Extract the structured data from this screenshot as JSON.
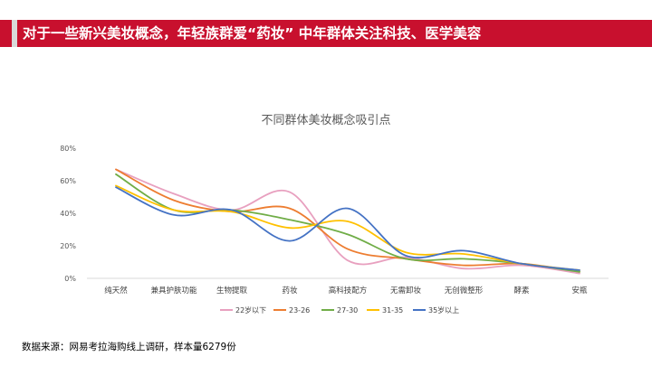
{
  "header": {
    "title": "对于一些新兴美妆概念，年轻族群爱“药妆” 中年群体关注科技、医学美容"
  },
  "footer": {
    "source": "数据来源：网易考拉海购线上调研，样本量6279份"
  },
  "colors": {
    "accent": "#c8102e",
    "header_bg": "#d9d9d9"
  },
  "chart_data": {
    "type": "line",
    "title": "不同群体美妆概念吸引点",
    "categories": [
      "纯天然",
      "兼具护肤功能",
      "生物提取",
      "药妆",
      "高科技配方",
      "无需卸妆",
      "无创微整形",
      "酵素",
      "安瓶"
    ],
    "ylim": [
      0,
      0.8
    ],
    "yticks": [
      "0%",
      "20%",
      "40%",
      "60%",
      "80%"
    ],
    "grid": false,
    "smooth": true,
    "legend_position": "bottom",
    "series": [
      {
        "name": "22岁以下",
        "color": "#e8a0bf",
        "values": [
          0.67,
          0.52,
          0.42,
          0.53,
          0.11,
          0.13,
          0.06,
          0.08,
          0.03
        ]
      },
      {
        "name": "23-26",
        "color": "#ed7d31",
        "values": [
          0.67,
          0.48,
          0.41,
          0.43,
          0.18,
          0.12,
          0.08,
          0.09,
          0.04
        ]
      },
      {
        "name": "27-30",
        "color": "#70ad47",
        "values": [
          0.64,
          0.42,
          0.42,
          0.36,
          0.27,
          0.12,
          0.12,
          0.09,
          0.04
        ]
      },
      {
        "name": "31-35",
        "color": "#ffc000",
        "values": [
          0.57,
          0.42,
          0.41,
          0.31,
          0.35,
          0.16,
          0.15,
          0.09,
          0.05
        ]
      },
      {
        "name": "35岁以上",
        "color": "#4472c4",
        "values": [
          0.56,
          0.39,
          0.42,
          0.23,
          0.43,
          0.14,
          0.17,
          0.09,
          0.05
        ]
      }
    ]
  }
}
